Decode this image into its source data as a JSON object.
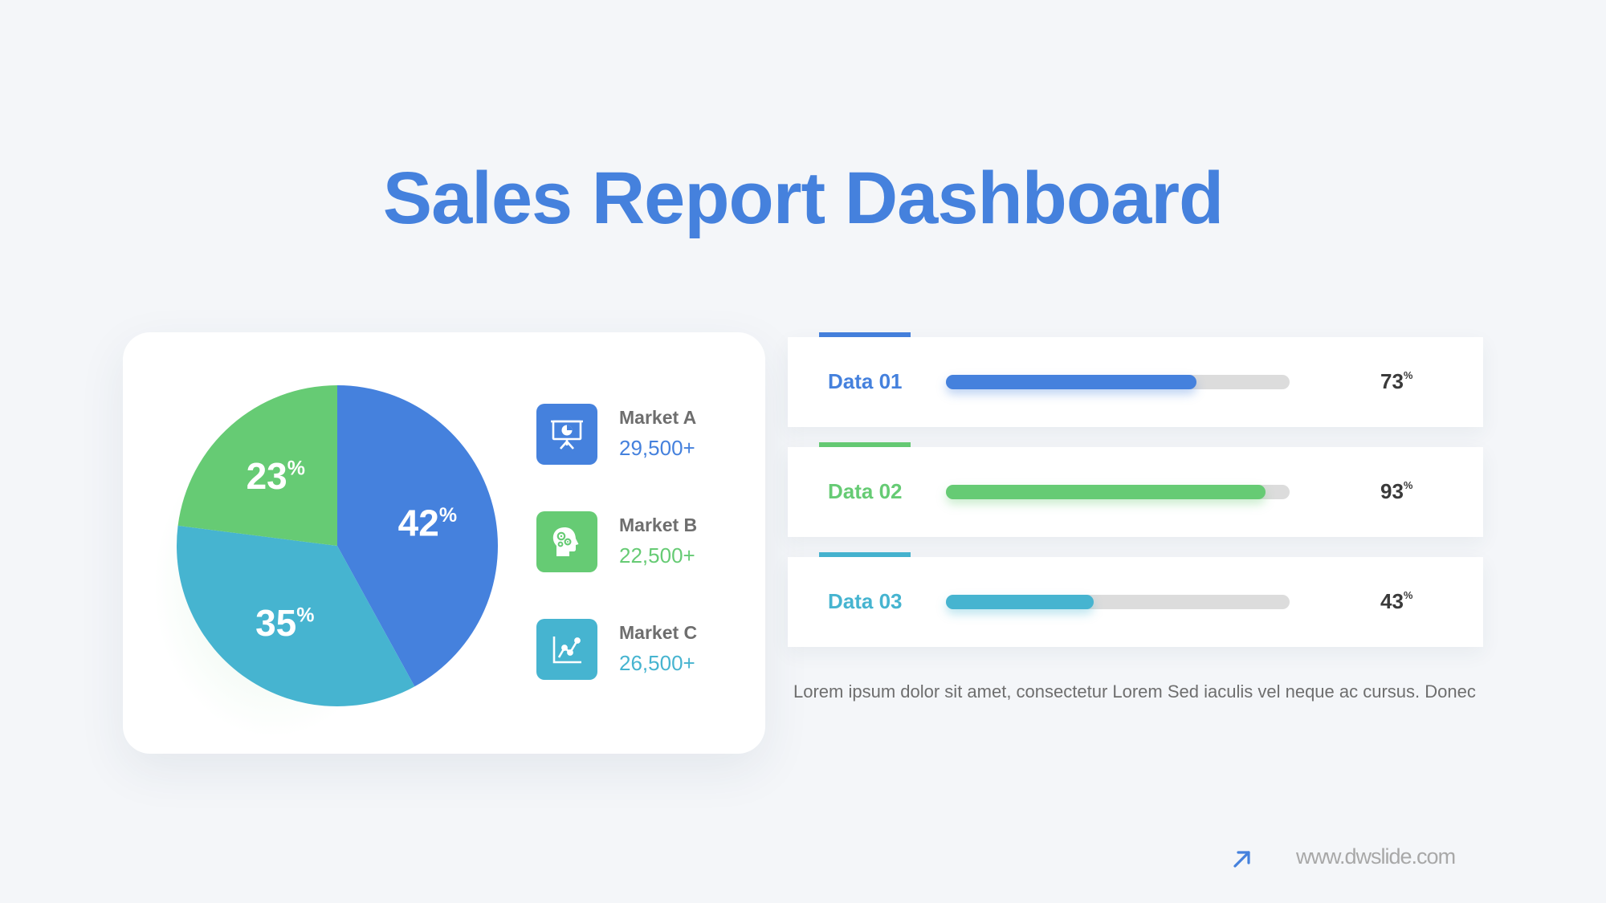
{
  "title": "Sales Report Dashboard",
  "colors": {
    "blue": "#4581dd",
    "green": "#66cb74",
    "teal": "#46b4d0",
    "title": "#4581dd"
  },
  "chart_data": [
    {
      "type": "pie",
      "title": "",
      "slices": [
        {
          "name": "Market A",
          "value": 42,
          "label": "42",
          "suffix": "%",
          "color": "#4581dd"
        },
        {
          "name": "Market C",
          "value": 35,
          "label": "35",
          "suffix": "%",
          "color": "#46b4d0"
        },
        {
          "name": "Market B",
          "value": 23,
          "label": "23",
          "suffix": "%",
          "color": "#66cb74"
        }
      ]
    },
    {
      "type": "bar",
      "orientation": "horizontal",
      "categories": [
        "Data 01",
        "Data 02",
        "Data 03"
      ],
      "values": [
        73,
        93,
        43
      ],
      "units": "%",
      "xlim": [
        0,
        100
      ],
      "colors": [
        "#4581dd",
        "#66cb74",
        "#46b4d0"
      ]
    }
  ],
  "legend": [
    {
      "name": "Market A",
      "value": "29,500+",
      "icon": "presentation-chart-icon",
      "color": "#4581dd"
    },
    {
      "name": "Market B",
      "value": "22,500+",
      "icon": "head-gears-icon",
      "color": "#66cb74"
    },
    {
      "name": "Market C",
      "value": "26,500+",
      "icon": "line-chart-icon",
      "color": "#46b4d0"
    }
  ],
  "bars": [
    {
      "label": "Data 01",
      "value": 73,
      "pct": "73",
      "suffix": "%",
      "color": "#4581dd"
    },
    {
      "label": "Data 02",
      "value": 93,
      "pct": "93",
      "suffix": "%",
      "color": "#66cb74"
    },
    {
      "label": "Data 03",
      "value": 43,
      "pct": "43",
      "suffix": "%",
      "color": "#46b4d0"
    }
  ],
  "description": "Lorem ipsum dolor sit amet, consectetur Lorem Sed iaculis vel neque ac cursus. Donec",
  "footer": {
    "url": "www.dwslide.com",
    "icon": "arrow-up-right-icon"
  }
}
